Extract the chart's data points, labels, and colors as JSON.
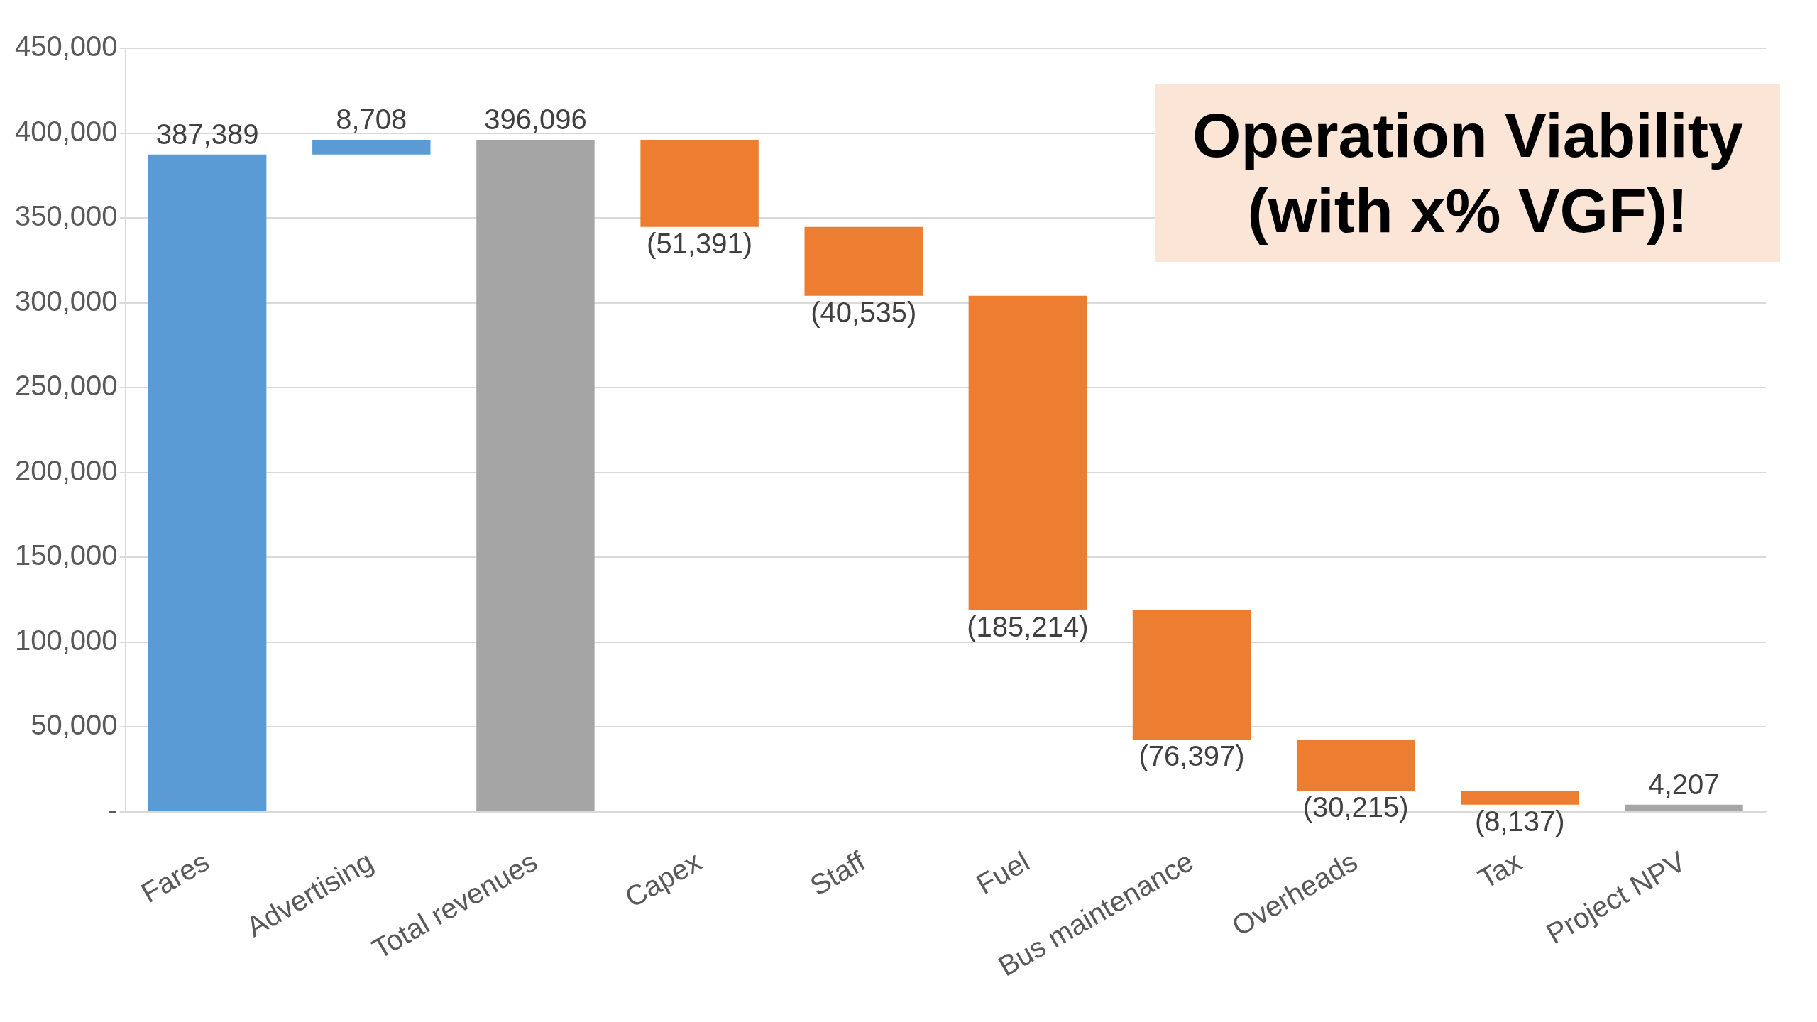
{
  "chart_data": {
    "type": "bar",
    "categories": [
      "Fares",
      "Advertising",
      "Total revenues",
      "Capex",
      "Staff",
      "Fuel",
      "Bus maintenance",
      "Overheads",
      "Tax",
      "Project NPV"
    ],
    "values": [
      387389,
      8708,
      396096,
      -51391,
      -40535,
      -185214,
      -76397,
      -30215,
      -8137,
      4207
    ],
    "base": [
      0,
      387389,
      0,
      396096,
      344705,
      304170,
      118956,
      42559,
      12344,
      0
    ],
    "colors": [
      "#5b9bd5",
      "#5b9bd5",
      "#a5a5a5",
      "#ed7d31",
      "#ed7d31",
      "#ed7d31",
      "#ed7d31",
      "#ed7d31",
      "#ed7d31",
      "#a5a5a5"
    ],
    "value_labels": [
      "387,389",
      "8,708",
      "396,096",
      "(51,391)",
      "(40,535)",
      "(185,214)",
      "(76,397)",
      "(30,215)",
      "(8,137)",
      "4,207"
    ],
    "ylim": [
      0,
      450000
    ],
    "yticks": [
      {
        "value": 0,
        "label": "-"
      },
      {
        "value": 50000,
        "label": "50,000"
      },
      {
        "value": 100000,
        "label": "100,000"
      },
      {
        "value": 150000,
        "label": "150,000"
      },
      {
        "value": 200000,
        "label": "200,000"
      },
      {
        "value": 250000,
        "label": "250,000"
      },
      {
        "value": 300000,
        "label": "300,000"
      },
      {
        "value": 350000,
        "label": "350,000"
      },
      {
        "value": 400000,
        "label": "400,000"
      },
      {
        "value": 450000,
        "label": "450,000"
      }
    ],
    "grid": "y",
    "legend": false,
    "annotations": [
      "Operation Viability (with x% VGF)!"
    ]
  }
}
